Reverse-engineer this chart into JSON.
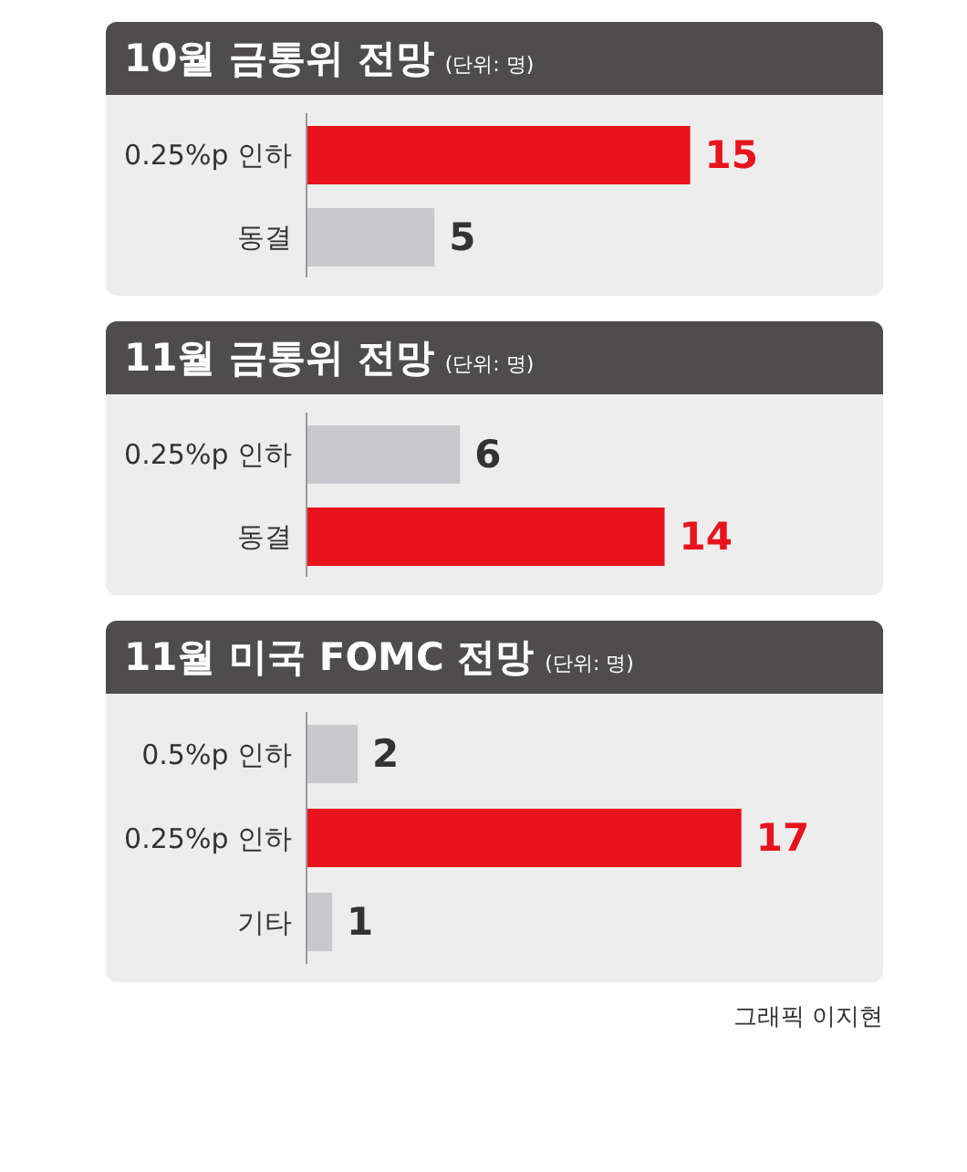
{
  "chart_data": [
    {
      "type": "bar",
      "orientation": "horizontal",
      "title": "10월 금통위 전망",
      "subtitle": "(단위: 명)",
      "categories": [
        "0.25%p 인하",
        "동결"
      ],
      "values": [
        15,
        5
      ],
      "colors": [
        "#e8131c",
        "#c9c9cd"
      ],
      "tick_labels": "y",
      "data_labels": true
    },
    {
      "type": "bar",
      "orientation": "horizontal",
      "title": "11월 금통위 전망",
      "subtitle": "(단위: 명)",
      "categories": [
        "0.25%p 인하",
        "동결"
      ],
      "values": [
        6,
        14
      ],
      "colors": [
        "#c9c9cd",
        "#e8131c"
      ],
      "tick_labels": "y",
      "data_labels": true
    },
    {
      "type": "bar",
      "orientation": "horizontal",
      "title": "11월 미국 FOMC 전망",
      "subtitle": "(단위: 명)",
      "categories": [
        "0.5%p 인하",
        "0.25%p 인하",
        "기타"
      ],
      "values": [
        2,
        17,
        1
      ],
      "colors": [
        "#c9c9cd",
        "#e8131c",
        "#c9c9cd"
      ],
      "tick_labels": "y",
      "data_labels": true,
      "annotations": [
        "그래픽 이지현"
      ]
    }
  ]
}
